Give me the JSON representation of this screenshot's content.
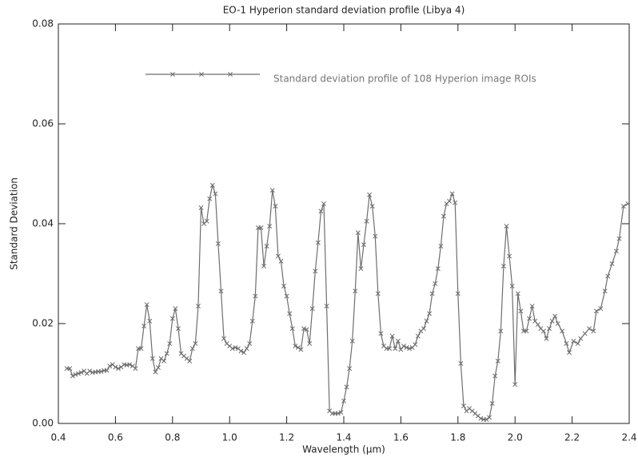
{
  "chart_data": {
    "type": "line",
    "title": "EO-1 Hyperion standard deviation profile (Libya 4)",
    "x_label": "Wavelength (μm)",
    "y_label": "Standard Deviation",
    "xlim": [
      0.4,
      2.4
    ],
    "ylim": [
      0,
      0.08
    ],
    "xticks": [
      0.4,
      0.6,
      0.8,
      {
        "value": 1,
        "label": "1.0"
      },
      1.2,
      1.4,
      1.6,
      1.8,
      {
        "value": 2,
        "label": "2.0"
      },
      2.2,
      2.4
    ],
    "yticks": [
      {
        "value": 0,
        "label": "0.00"
      },
      {
        "value": 0.02,
        "label": "0.02"
      },
      {
        "value": 0.04,
        "label": "0.04"
      },
      {
        "value": 0.06,
        "label": "0.06"
      },
      {
        "value": 0.08,
        "label": "0.08"
      }
    ],
    "grid": false,
    "marker": "x",
    "series": [
      {
        "name": "Standard deviation profile of 108 Hyperion image ROIs",
        "color": "#6e6e6e",
        "x": [
          0.43,
          0.44,
          0.45,
          0.46,
          0.47,
          0.48,
          0.49,
          0.5,
          0.51,
          0.52,
          0.53,
          0.54,
          0.55,
          0.56,
          0.57,
          0.58,
          0.59,
          0.6,
          0.61,
          0.62,
          0.63,
          0.64,
          0.65,
          0.66,
          0.67,
          0.68,
          0.69,
          0.7,
          0.71,
          0.72,
          0.73,
          0.74,
          0.75,
          0.76,
          0.77,
          0.78,
          0.79,
          0.8,
          0.81,
          0.82,
          0.83,
          0.84,
          0.85,
          0.86,
          0.87,
          0.88,
          0.89,
          0.9,
          0.91,
          0.92,
          0.93,
          0.94,
          0.95,
          0.96,
          0.97,
          0.98,
          0.99,
          1.0,
          1.01,
          1.02,
          1.03,
          1.04,
          1.05,
          1.06,
          1.07,
          1.08,
          1.09,
          1.1,
          1.11,
          1.12,
          1.13,
          1.14,
          1.15,
          1.16,
          1.17,
          1.18,
          1.19,
          1.2,
          1.21,
          1.22,
          1.23,
          1.24,
          1.25,
          1.26,
          1.27,
          1.28,
          1.29,
          1.3,
          1.31,
          1.32,
          1.33,
          1.34,
          1.35,
          1.36,
          1.37,
          1.38,
          1.39,
          1.4,
          1.41,
          1.42,
          1.43,
          1.44,
          1.45,
          1.46,
          1.47,
          1.48,
          1.49,
          1.5,
          1.51,
          1.52,
          1.53,
          1.54,
          1.55,
          1.56,
          1.57,
          1.58,
          1.59,
          1.6,
          1.61,
          1.62,
          1.63,
          1.64,
          1.65,
          1.66,
          1.67,
          1.68,
          1.69,
          1.7,
          1.71,
          1.72,
          1.73,
          1.74,
          1.75,
          1.76,
          1.77,
          1.78,
          1.79,
          1.8,
          1.81,
          1.82,
          1.83,
          1.84,
          1.85,
          1.86,
          1.87,
          1.88,
          1.89,
          1.9,
          1.91,
          1.92,
          1.93,
          1.94,
          1.95,
          1.96,
          1.97,
          1.98,
          1.99,
          2.0,
          2.01,
          2.02,
          2.03,
          2.04,
          2.05,
          2.06,
          2.07,
          2.08,
          2.09,
          2.1,
          2.11,
          2.12,
          2.13,
          2.14,
          2.15,
          2.165,
          2.18,
          2.19,
          2.205,
          2.22,
          2.23,
          2.245,
          2.26,
          2.275,
          2.285,
          2.3,
          2.315,
          2.325,
          2.34,
          2.355,
          2.365,
          2.38,
          2.395
        ],
        "values": [
          0.011,
          0.011,
          0.0095,
          0.0098,
          0.01,
          0.0102,
          0.0105,
          0.01,
          0.0105,
          0.0102,
          0.0103,
          0.0104,
          0.0104,
          0.0106,
          0.0106,
          0.0115,
          0.0118,
          0.0113,
          0.011,
          0.0113,
          0.0118,
          0.0117,
          0.0118,
          0.0115,
          0.011,
          0.015,
          0.015,
          0.0195,
          0.0238,
          0.0205,
          0.013,
          0.0103,
          0.0112,
          0.013,
          0.0125,
          0.014,
          0.016,
          0.021,
          0.023,
          0.019,
          0.014,
          0.0135,
          0.013,
          0.0125,
          0.015,
          0.016,
          0.0235,
          0.0432,
          0.04,
          0.0405,
          0.045,
          0.0477,
          0.046,
          0.036,
          0.0265,
          0.017,
          0.016,
          0.0155,
          0.015,
          0.0152,
          0.015,
          0.0145,
          0.0142,
          0.015,
          0.016,
          0.0205,
          0.0255,
          0.0392,
          0.0392,
          0.0315,
          0.0355,
          0.0395,
          0.0467,
          0.0435,
          0.0335,
          0.0325,
          0.0275,
          0.0255,
          0.022,
          0.019,
          0.0155,
          0.0152,
          0.0148,
          0.019,
          0.0188,
          0.016,
          0.023,
          0.0305,
          0.0362,
          0.0425,
          0.044,
          0.0235,
          0.0025,
          0.002,
          0.002,
          0.002,
          0.0022,
          0.0045,
          0.0073,
          0.011,
          0.0165,
          0.0265,
          0.0382,
          0.031,
          0.0358,
          0.0405,
          0.0458,
          0.0435,
          0.0375,
          0.026,
          0.018,
          0.0155,
          0.015,
          0.015,
          0.0175,
          0.015,
          0.0165,
          0.0148,
          0.0155,
          0.0152,
          0.015,
          0.0152,
          0.0158,
          0.0175,
          0.0185,
          0.019,
          0.0205,
          0.022,
          0.026,
          0.028,
          0.031,
          0.0355,
          0.0415,
          0.044,
          0.0445,
          0.046,
          0.0442,
          0.026,
          0.012,
          0.0035,
          0.0025,
          0.003,
          0.0025,
          0.002,
          0.0015,
          0.001,
          0.0008,
          0.0008,
          0.0012,
          0.004,
          0.0095,
          0.0125,
          0.0185,
          0.0315,
          0.0395,
          0.0335,
          0.0275,
          0.0078,
          0.026,
          0.0225,
          0.0185,
          0.0185,
          0.021,
          0.0235,
          0.0205,
          0.0198,
          0.019,
          0.0185,
          0.017,
          0.019,
          0.0205,
          0.0215,
          0.02,
          0.0185,
          0.016,
          0.0142,
          0.0165,
          0.016,
          0.017,
          0.018,
          0.019,
          0.0185,
          0.0225,
          0.023,
          0.0265,
          0.0295,
          0.032,
          0.0345,
          0.037,
          0.0435,
          0.044
        ]
      }
    ]
  }
}
